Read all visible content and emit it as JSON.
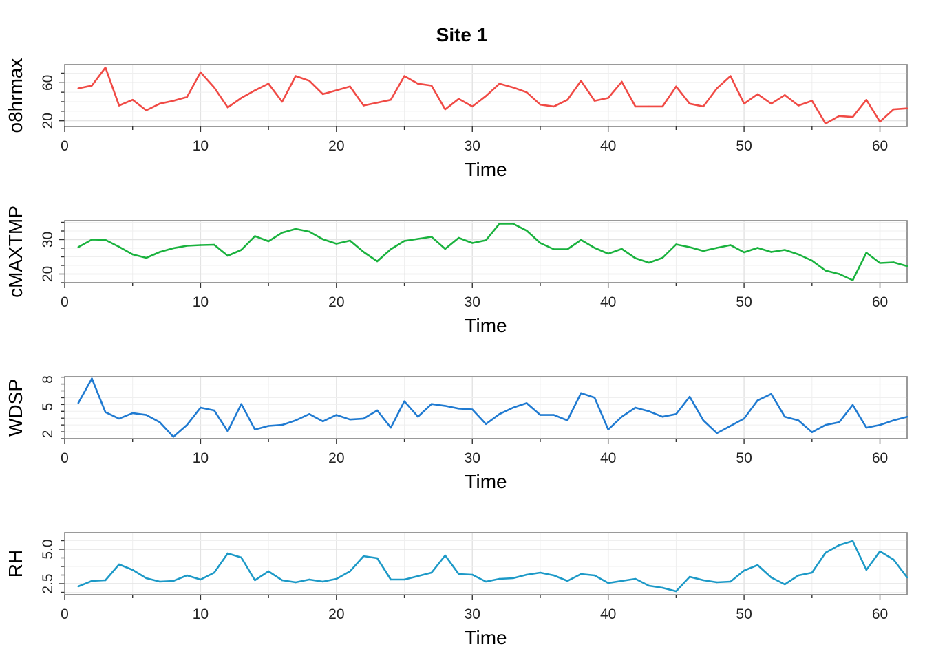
{
  "title": "Site 1",
  "chart_data": [
    {
      "type": "line",
      "xlabel": "Time",
      "ylabel": "o8hrmax",
      "xlim": [
        0,
        62
      ],
      "xticks": [
        0,
        10,
        20,
        30,
        40,
        50,
        60
      ],
      "ylim": [
        14,
        79
      ],
      "yticks": [
        20,
        60
      ],
      "color": "#F04A45",
      "series": [
        {
          "x": [
            1,
            2,
            3,
            4,
            5,
            6,
            7,
            8,
            9,
            10,
            11,
            12,
            13,
            14,
            15,
            16,
            17,
            18,
            19,
            20,
            21,
            22,
            23,
            24,
            25,
            26,
            27,
            28,
            29,
            30,
            31,
            32,
            33,
            34,
            35,
            36,
            37,
            38,
            39,
            40,
            41,
            42,
            43,
            44,
            45,
            46,
            47,
            48,
            49,
            50,
            51,
            52,
            53,
            54,
            55,
            56,
            57,
            58,
            59,
            60,
            61,
            62
          ],
          "values": [
            54,
            57,
            76,
            36,
            42,
            31,
            38,
            41,
            45,
            71,
            55,
            34,
            44,
            52,
            59,
            40,
            67,
            62,
            48,
            52,
            56,
            36,
            39,
            42,
            67,
            59,
            57,
            32,
            43,
            35,
            46,
            59,
            55,
            50,
            37,
            35,
            42,
            62,
            41,
            44,
            61,
            35,
            35,
            35,
            56,
            38,
            35,
            54,
            67,
            38,
            48,
            38,
            47,
            36,
            41,
            17,
            25,
            24,
            42,
            19,
            32,
            33
          ]
        }
      ]
    },
    {
      "type": "line",
      "xlabel": "Time",
      "ylabel": "cMAXTMP",
      "xlim": [
        0,
        62
      ],
      "xticks": [
        0,
        10,
        20,
        30,
        40,
        50,
        60
      ],
      "ylim": [
        17.5,
        35.5
      ],
      "yticks": [
        20,
        30
      ],
      "color": "#1AB23E",
      "series": [
        {
          "x": [
            1,
            2,
            3,
            4,
            5,
            6,
            7,
            8,
            9,
            10,
            11,
            12,
            13,
            14,
            15,
            16,
            17,
            18,
            19,
            20,
            21,
            22,
            23,
            24,
            25,
            26,
            27,
            28,
            29,
            30,
            31,
            32,
            33,
            34,
            35,
            36,
            37,
            38,
            39,
            40,
            41,
            42,
            43,
            44,
            45,
            46,
            47,
            48,
            49,
            50,
            51,
            52,
            53,
            54,
            55,
            56,
            57,
            58,
            59,
            60,
            61,
            62
          ],
          "values": [
            27.8,
            30.0,
            29.9,
            27.9,
            25.7,
            24.7,
            26.4,
            27.5,
            28.2,
            28.4,
            28.5,
            25.3,
            27.0,
            31.0,
            29.5,
            32.0,
            33.1,
            32.3,
            30.1,
            28.8,
            29.7,
            26.4,
            23.7,
            27.2,
            29.6,
            30.2,
            30.8,
            27.3,
            30.5,
            29.0,
            29.8,
            34.6,
            34.6,
            32.6,
            29.0,
            27.2,
            27.2,
            29.9,
            27.6,
            25.9,
            27.3,
            24.6,
            23.3,
            24.7,
            28.6,
            27.8,
            26.7,
            27.6,
            28.4,
            26.3,
            27.6,
            26.4,
            27.0,
            25.7,
            23.9,
            21.0,
            20.0,
            18.2,
            26.2,
            23.2,
            23.4,
            22.3
          ]
        }
      ]
    },
    {
      "type": "line",
      "xlabel": "Time",
      "ylabel": "WDSP",
      "xlim": [
        0,
        62
      ],
      "xticks": [
        0,
        10,
        20,
        30,
        40,
        50,
        60
      ],
      "ylim": [
        1.5,
        8.3
      ],
      "yticks": [
        2,
        5,
        8
      ],
      "color": "#1F7AD1",
      "series": [
        {
          "x": [
            1,
            2,
            3,
            4,
            5,
            6,
            7,
            8,
            9,
            10,
            11,
            12,
            13,
            14,
            15,
            16,
            17,
            18,
            19,
            20,
            21,
            22,
            23,
            24,
            25,
            26,
            27,
            28,
            29,
            30,
            31,
            32,
            33,
            34,
            35,
            36,
            37,
            38,
            39,
            40,
            41,
            42,
            43,
            44,
            45,
            46,
            47,
            48,
            49,
            50,
            51,
            52,
            53,
            54,
            55,
            56,
            57,
            58,
            59,
            60,
            61,
            62
          ],
          "values": [
            5.4,
            8.1,
            4.4,
            3.7,
            4.3,
            4.1,
            3.3,
            1.7,
            3.0,
            4.9,
            4.6,
            2.3,
            5.3,
            2.5,
            2.9,
            3.0,
            3.5,
            4.2,
            3.4,
            4.1,
            3.6,
            3.7,
            4.6,
            2.7,
            5.6,
            3.9,
            5.3,
            5.1,
            4.8,
            4.7,
            3.1,
            4.2,
            4.9,
            5.4,
            4.1,
            4.1,
            3.5,
            6.5,
            6.0,
            2.5,
            3.9,
            4.9,
            4.5,
            3.9,
            4.2,
            6.1,
            3.5,
            2.1,
            2.9,
            3.7,
            5.7,
            6.4,
            3.9,
            3.5,
            2.2,
            3.0,
            3.3,
            5.2,
            2.7,
            3.0,
            3.5,
            3.9
          ]
        }
      ]
    },
    {
      "type": "line",
      "xlabel": "Time",
      "ylabel": "RH",
      "xlim": [
        0,
        62
      ],
      "xticks": [
        0,
        10,
        20,
        30,
        40,
        50,
        60
      ],
      "ylim": [
        1.7,
        6.2
      ],
      "yticks": [
        2.5,
        5.0
      ],
      "color": "#1C99C7",
      "series": [
        {
          "x": [
            1,
            2,
            3,
            4,
            5,
            6,
            7,
            8,
            9,
            10,
            11,
            12,
            13,
            14,
            15,
            16,
            17,
            18,
            19,
            20,
            21,
            22,
            23,
            24,
            25,
            26,
            27,
            28,
            29,
            30,
            31,
            32,
            33,
            34,
            35,
            36,
            37,
            38,
            39,
            40,
            41,
            42,
            43,
            44,
            45,
            46,
            47,
            48,
            49,
            50,
            51,
            52,
            53,
            54,
            55,
            56,
            57,
            58,
            59,
            60,
            61,
            62
          ],
          "values": [
            2.3,
            2.7,
            2.75,
            3.9,
            3.5,
            2.9,
            2.65,
            2.7,
            3.1,
            2.8,
            3.3,
            4.7,
            4.4,
            2.75,
            3.4,
            2.75,
            2.6,
            2.8,
            2.65,
            2.85,
            3.4,
            4.5,
            4.35,
            2.8,
            2.8,
            3.05,
            3.3,
            4.55,
            3.2,
            3.15,
            2.65,
            2.85,
            2.9,
            3.15,
            3.3,
            3.1,
            2.7,
            3.2,
            3.1,
            2.55,
            2.7,
            2.85,
            2.35,
            2.2,
            1.95,
            3.0,
            2.75,
            2.6,
            2.65,
            3.45,
            3.85,
            2.95,
            2.45,
            3.1,
            3.3,
            4.75,
            5.3,
            5.6,
            3.5,
            4.85,
            4.25,
            2.95
          ]
        }
      ]
    }
  ]
}
